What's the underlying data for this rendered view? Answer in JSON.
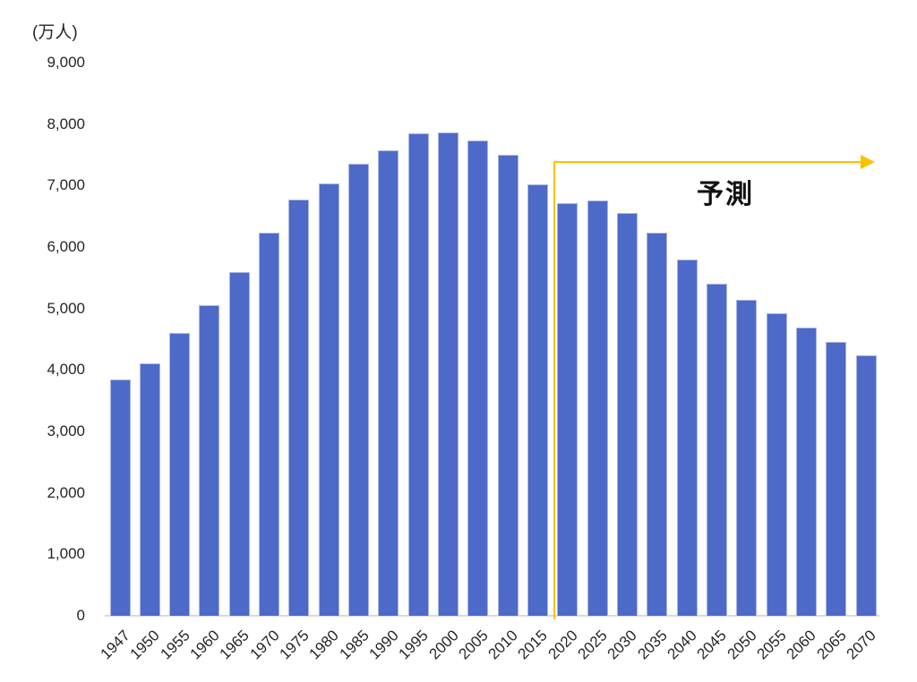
{
  "chart_data": {
    "type": "bar",
    "title": "",
    "unit_label": "(万人)",
    "xlabel": "",
    "ylabel": "",
    "categories": [
      "1947",
      "1950",
      "1955",
      "1960",
      "1965",
      "1970",
      "1975",
      "1980",
      "1985",
      "1990",
      "1995",
      "2000",
      "2005",
      "2010",
      "2015",
      "2020",
      "2025",
      "2030",
      "2035",
      "2040",
      "2045",
      "2050",
      "2055",
      "2060",
      "2065",
      "2070"
    ],
    "values": [
      3840,
      4100,
      4600,
      5050,
      5590,
      6230,
      6770,
      7040,
      7350,
      7580,
      7850,
      7870,
      7740,
      7500,
      7020,
      6720,
      6760,
      6550,
      6240,
      5800,
      5410,
      5140,
      4920,
      4690,
      4460,
      4240
    ],
    "y_ticks": [
      0,
      1000,
      2000,
      3000,
      4000,
      5000,
      6000,
      7000,
      8000,
      9000
    ],
    "ylim": [
      0,
      9000
    ],
    "grid": false,
    "legend": false,
    "bar_color": "#4e6ac8",
    "bar_border_color": "#a9b5e6",
    "axis_line_color": "#d9d9d9",
    "annotation": {
      "label": "予測",
      "divider_after_category": "2015",
      "line_color": "#ffc000"
    }
  }
}
